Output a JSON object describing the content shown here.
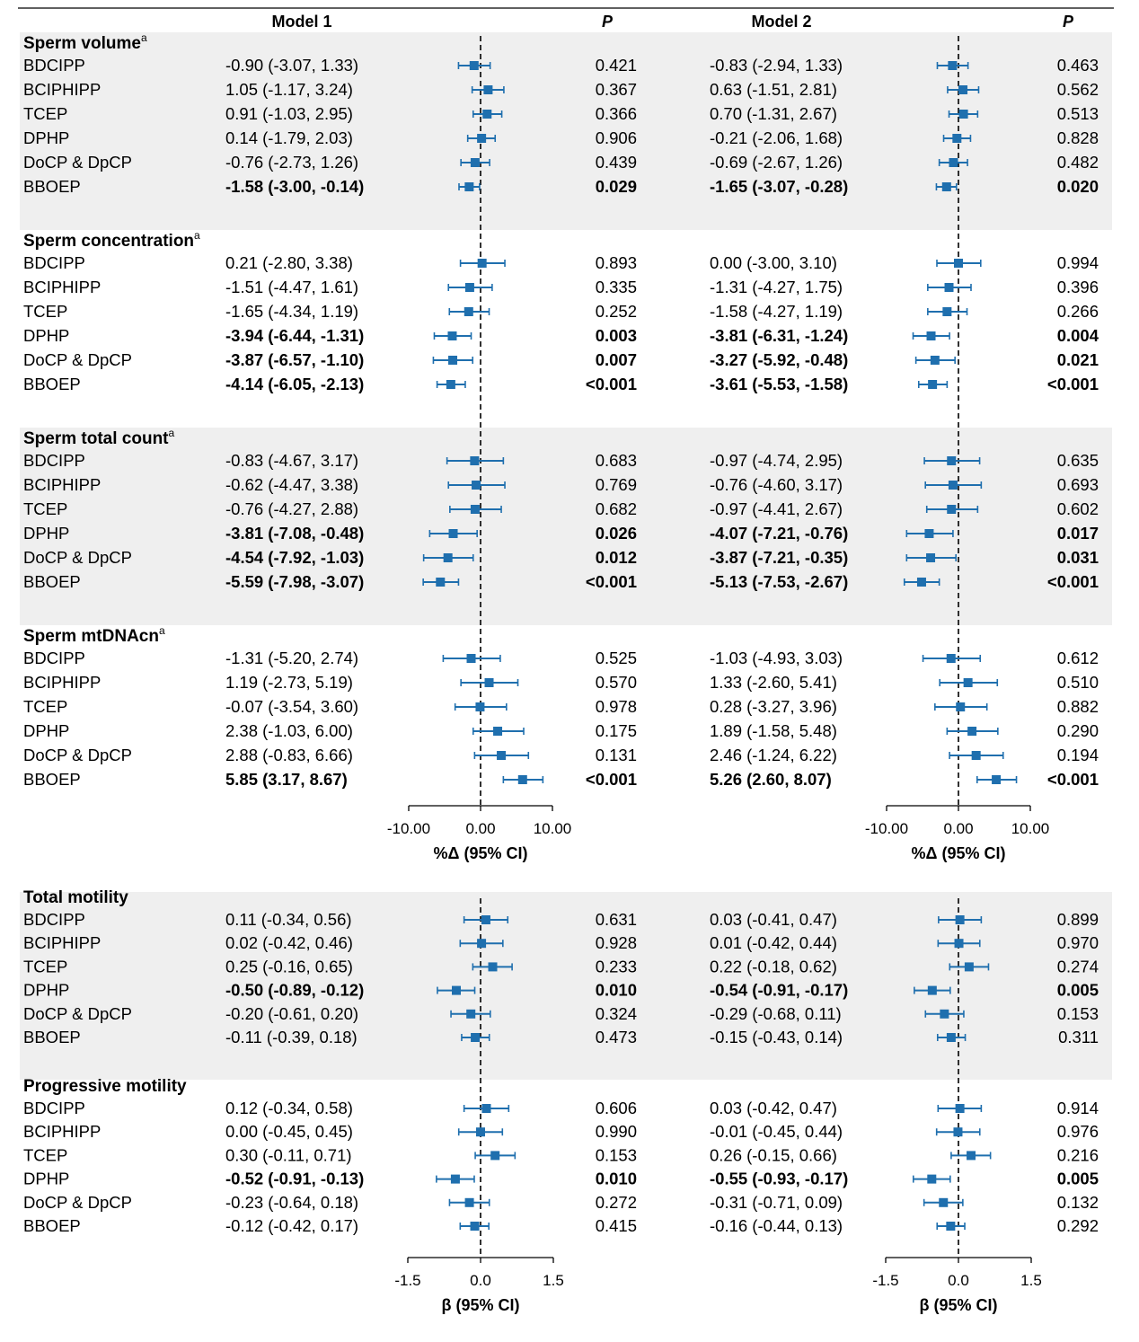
{
  "header": {
    "model1": "Model 1",
    "model2": "Model 2",
    "p_label": "P"
  },
  "colors": {
    "marker": "#1f6fae",
    "band": "#efefef",
    "text": "#000000"
  },
  "chart_data": {
    "type": "forest",
    "groups": [
      {
        "title": "Sperm volume",
        "superscript": "a",
        "shaded": true,
        "scale": "pct",
        "rows": [
          {
            "label": "BDCIPP",
            "bold": false,
            "m1": {
              "est": -0.9,
              "lo": -3.07,
              "hi": 1.33,
              "text": "-0.90 (-3.07, 1.33)",
              "p": "0.421"
            },
            "m2": {
              "est": -0.83,
              "lo": -2.94,
              "hi": 1.33,
              "text": "-0.83 (-2.94, 1.33)",
              "p": "0.463"
            }
          },
          {
            "label": "BCIPHIPP",
            "bold": false,
            "m1": {
              "est": 1.05,
              "lo": -1.17,
              "hi": 3.24,
              "text": "1.05 (-1.17, 3.24)",
              "p": "0.367"
            },
            "m2": {
              "est": 0.63,
              "lo": -1.51,
              "hi": 2.81,
              "text": "0.63 (-1.51, 2.81)",
              "p": "0.562"
            }
          },
          {
            "label": "TCEP",
            "bold": false,
            "m1": {
              "est": 0.91,
              "lo": -1.03,
              "hi": 2.95,
              "text": "0.91 (-1.03, 2.95)",
              "p": "0.366"
            },
            "m2": {
              "est": 0.7,
              "lo": -1.31,
              "hi": 2.67,
              "text": "0.70 (-1.31, 2.67)",
              "p": "0.513"
            }
          },
          {
            "label": "DPHP",
            "bold": false,
            "m1": {
              "est": 0.14,
              "lo": -1.79,
              "hi": 2.03,
              "text": "0.14 (-1.79, 2.03)",
              "p": "0.906"
            },
            "m2": {
              "est": -0.21,
              "lo": -2.06,
              "hi": 1.68,
              "text": "-0.21 (-2.06, 1.68)",
              "p": "0.828"
            }
          },
          {
            "label": "DoCP & DpCP",
            "bold": false,
            "m1": {
              "est": -0.76,
              "lo": -2.73,
              "hi": 1.26,
              "text": "-0.76 (-2.73, 1.26)",
              "p": "0.439"
            },
            "m2": {
              "est": -0.69,
              "lo": -2.67,
              "hi": 1.26,
              "text": "-0.69 (-2.67, 1.26)",
              "p": "0.482"
            }
          },
          {
            "label": "BBOEP",
            "bold": true,
            "m1": {
              "est": -1.58,
              "lo": -3.0,
              "hi": -0.14,
              "text": "-1.58 (-3.00, -0.14)",
              "p": "0.029"
            },
            "m2": {
              "est": -1.65,
              "lo": -3.07,
              "hi": -0.28,
              "text": "-1.65 (-3.07, -0.28)",
              "p": "0.020"
            }
          }
        ]
      },
      {
        "title": "Sperm concentration",
        "superscript": "a",
        "shaded": false,
        "scale": "pct",
        "rows": [
          {
            "label": "BDCIPP",
            "bold": false,
            "m1": {
              "est": 0.21,
              "lo": -2.8,
              "hi": 3.38,
              "text": "0.21 (-2.80, 3.38)",
              "p": "0.893"
            },
            "m2": {
              "est": 0.0,
              "lo": -3.0,
              "hi": 3.1,
              "text": "0.00 (-3.00, 3.10)",
              "p": "0.994"
            }
          },
          {
            "label": "BCIPHIPP",
            "bold": false,
            "m1": {
              "est": -1.51,
              "lo": -4.47,
              "hi": 1.61,
              "text": "-1.51 (-4.47, 1.61)",
              "p": "0.335"
            },
            "m2": {
              "est": -1.31,
              "lo": -4.27,
              "hi": 1.75,
              "text": "-1.31 (-4.27, 1.75)",
              "p": "0.396"
            }
          },
          {
            "label": "TCEP",
            "bold": false,
            "m1": {
              "est": -1.65,
              "lo": -4.34,
              "hi": 1.19,
              "text": "-1.65 (-4.34, 1.19)",
              "p": "0.252"
            },
            "m2": {
              "est": -1.58,
              "lo": -4.27,
              "hi": 1.19,
              "text": "-1.58 (-4.27, 1.19)",
              "p": "0.266"
            }
          },
          {
            "label": "DPHP",
            "bold": true,
            "m1": {
              "est": -3.94,
              "lo": -6.44,
              "hi": -1.31,
              "text": "-3.94 (-6.44, -1.31)",
              "p": "0.003"
            },
            "m2": {
              "est": -3.81,
              "lo": -6.31,
              "hi": -1.24,
              "text": "-3.81 (-6.31, -1.24)",
              "p": "0.004"
            }
          },
          {
            "label": "DoCP & DpCP",
            "bold": true,
            "m1": {
              "est": -3.87,
              "lo": -6.57,
              "hi": -1.1,
              "text": "-3.87 (-6.57, -1.10)",
              "p": "0.007"
            },
            "m2": {
              "est": -3.27,
              "lo": -5.92,
              "hi": -0.48,
              "text": "-3.27 (-5.92, -0.48)",
              "p": "0.021"
            }
          },
          {
            "label": "BBOEP",
            "bold": true,
            "m1": {
              "est": -4.14,
              "lo": -6.05,
              "hi": -2.13,
              "text": "-4.14 (-6.05, -2.13)",
              "p": "<0.001"
            },
            "m2": {
              "est": -3.61,
              "lo": -5.53,
              "hi": -1.58,
              "text": "-3.61 (-5.53, -1.58)",
              "p": "<0.001"
            }
          }
        ]
      },
      {
        "title": "Sperm total count",
        "superscript": "a",
        "shaded": true,
        "scale": "pct",
        "rows": [
          {
            "label": "BDCIPP",
            "bold": false,
            "m1": {
              "est": -0.83,
              "lo": -4.67,
              "hi": 3.17,
              "text": "-0.83 (-4.67, 3.17)",
              "p": "0.683"
            },
            "m2": {
              "est": -0.97,
              "lo": -4.74,
              "hi": 2.95,
              "text": "-0.97 (-4.74, 2.95)",
              "p": "0.635"
            }
          },
          {
            "label": "BCIPHIPP",
            "bold": false,
            "m1": {
              "est": -0.62,
              "lo": -4.47,
              "hi": 3.38,
              "text": "-0.62 (-4.47, 3.38)",
              "p": "0.769"
            },
            "m2": {
              "est": -0.76,
              "lo": -4.6,
              "hi": 3.17,
              "text": "-0.76 (-4.60, 3.17)",
              "p": "0.693"
            }
          },
          {
            "label": "TCEP",
            "bold": false,
            "m1": {
              "est": -0.76,
              "lo": -4.27,
              "hi": 2.88,
              "text": "-0.76 (-4.27, 2.88)",
              "p": "0.682"
            },
            "m2": {
              "est": -0.97,
              "lo": -4.41,
              "hi": 2.67,
              "text": "-0.97 (-4.41, 2.67)",
              "p": "0.602"
            }
          },
          {
            "label": "DPHP",
            "bold": true,
            "m1": {
              "est": -3.81,
              "lo": -7.08,
              "hi": -0.48,
              "text": "-3.81 (-7.08, -0.48)",
              "p": "0.026"
            },
            "m2": {
              "est": -4.07,
              "lo": -7.21,
              "hi": -0.76,
              "text": "-4.07 (-7.21, -0.76)",
              "p": "0.017"
            }
          },
          {
            "label": "DoCP & DpCP",
            "bold": true,
            "m1": {
              "est": -4.54,
              "lo": -7.92,
              "hi": -1.03,
              "text": "-4.54 (-7.92, -1.03)",
              "p": "0.012"
            },
            "m2": {
              "est": -3.87,
              "lo": -7.21,
              "hi": -0.35,
              "text": "-3.87 (-7.21, -0.35)",
              "p": "0.031"
            }
          },
          {
            "label": "BBOEP",
            "bold": true,
            "m1": {
              "est": -5.59,
              "lo": -7.98,
              "hi": -3.07,
              "text": "-5.59 (-7.98, -3.07)",
              "p": "<0.001"
            },
            "m2": {
              "est": -5.13,
              "lo": -7.53,
              "hi": -2.67,
              "text": "-5.13 (-7.53, -2.67)",
              "p": "<0.001"
            }
          }
        ]
      },
      {
        "title": "Sperm mtDNAcn",
        "superscript": "a",
        "shaded": false,
        "scale": "pct",
        "rows": [
          {
            "label": "BDCIPP",
            "bold": false,
            "m1": {
              "est": -1.31,
              "lo": -5.2,
              "hi": 2.74,
              "text": "-1.31 (-5.20, 2.74)",
              "p": "0.525"
            },
            "m2": {
              "est": -1.03,
              "lo": -4.93,
              "hi": 3.03,
              "text": "-1.03 (-4.93, 3.03)",
              "p": "0.612"
            }
          },
          {
            "label": "BCIPHIPP",
            "bold": false,
            "m1": {
              "est": 1.19,
              "lo": -2.73,
              "hi": 5.19,
              "text": "1.19 (-2.73, 5.19)",
              "p": "0.570"
            },
            "m2": {
              "est": 1.33,
              "lo": -2.6,
              "hi": 5.41,
              "text": "1.33 (-2.60, 5.41)",
              "p": "0.510"
            }
          },
          {
            "label": "TCEP",
            "bold": false,
            "m1": {
              "est": -0.07,
              "lo": -3.54,
              "hi": 3.6,
              "text": "-0.07 (-3.54, 3.60)",
              "p": "0.978"
            },
            "m2": {
              "est": 0.28,
              "lo": -3.27,
              "hi": 3.96,
              "text": "0.28 (-3.27, 3.96)",
              "p": "0.882"
            }
          },
          {
            "label": "DPHP",
            "bold": false,
            "m1": {
              "est": 2.38,
              "lo": -1.03,
              "hi": 6.0,
              "text": "2.38 (-1.03, 6.00)",
              "p": "0.175"
            },
            "m2": {
              "est": 1.89,
              "lo": -1.58,
              "hi": 5.48,
              "text": "1.89 (-1.58, 5.48)",
              "p": "0.290"
            }
          },
          {
            "label": "DoCP & DpCP",
            "bold": false,
            "m1": {
              "est": 2.88,
              "lo": -0.83,
              "hi": 6.66,
              "text": "2.88 (-0.83, 6.66)",
              "p": "0.131"
            },
            "m2": {
              "est": 2.46,
              "lo": -1.24,
              "hi": 6.22,
              "text": "2.46 (-1.24, 6.22)",
              "p": "0.194"
            }
          },
          {
            "label": "BBOEP",
            "bold": true,
            "m1": {
              "est": 5.85,
              "lo": 3.17,
              "hi": 8.67,
              "text": "5.85 (3.17, 8.67)",
              "p": "<0.001"
            },
            "m2": {
              "est": 5.26,
              "lo": 2.6,
              "hi": 8.07,
              "text": "5.26 (2.60, 8.07)",
              "p": "<0.001"
            }
          }
        ]
      },
      {
        "title": "Total motility",
        "superscript": "",
        "shaded": true,
        "scale": "beta",
        "rows": [
          {
            "label": "BDCIPP",
            "bold": false,
            "m1": {
              "est": 0.11,
              "lo": -0.34,
              "hi": 0.56,
              "text": "0.11 (-0.34, 0.56)",
              "p": "0.631"
            },
            "m2": {
              "est": 0.03,
              "lo": -0.41,
              "hi": 0.47,
              "text": "0.03 (-0.41, 0.47)",
              "p": "0.899"
            }
          },
          {
            "label": "BCIPHIPP",
            "bold": false,
            "m1": {
              "est": 0.02,
              "lo": -0.42,
              "hi": 0.46,
              "text": "0.02 (-0.42, 0.46)",
              "p": "0.928"
            },
            "m2": {
              "est": 0.01,
              "lo": -0.42,
              "hi": 0.44,
              "text": "0.01 (-0.42, 0.44)",
              "p": "0.970"
            }
          },
          {
            "label": "TCEP",
            "bold": false,
            "m1": {
              "est": 0.25,
              "lo": -0.16,
              "hi": 0.65,
              "text": "0.25 (-0.16, 0.65)",
              "p": "0.233"
            },
            "m2": {
              "est": 0.22,
              "lo": -0.18,
              "hi": 0.62,
              "text": "0.22 (-0.18, 0.62)",
              "p": "0.274"
            }
          },
          {
            "label": "DPHP",
            "bold": true,
            "m1": {
              "est": -0.5,
              "lo": -0.89,
              "hi": -0.12,
              "text": "-0.50 (-0.89, -0.12)",
              "p": "0.010"
            },
            "m2": {
              "est": -0.54,
              "lo": -0.91,
              "hi": -0.17,
              "text": "-0.54 (-0.91, -0.17)",
              "p": "0.005"
            }
          },
          {
            "label": "DoCP & DpCP",
            "bold": false,
            "m1": {
              "est": -0.2,
              "lo": -0.61,
              "hi": 0.2,
              "text": "-0.20 (-0.61, 0.20)",
              "p": "0.324"
            },
            "m2": {
              "est": -0.29,
              "lo": -0.68,
              "hi": 0.11,
              "text": "-0.29 (-0.68, 0.11)",
              "p": "0.153"
            }
          },
          {
            "label": "BBOEP",
            "bold": false,
            "m1": {
              "est": -0.11,
              "lo": -0.39,
              "hi": 0.18,
              "text": "-0.11 (-0.39, 0.18)",
              "p": "0.473"
            },
            "m2": {
              "est": -0.15,
              "lo": -0.43,
              "hi": 0.14,
              "text": "-0.15 (-0.43, 0.14)",
              "p": "0.311"
            }
          }
        ]
      },
      {
        "title": "Progressive motility",
        "superscript": "",
        "shaded": false,
        "scale": "beta",
        "rows": [
          {
            "label": "BDCIPP",
            "bold": false,
            "m1": {
              "est": 0.12,
              "lo": -0.34,
              "hi": 0.58,
              "text": "0.12 (-0.34, 0.58)",
              "p": "0.606"
            },
            "m2": {
              "est": 0.03,
              "lo": -0.42,
              "hi": 0.47,
              "text": "0.03 (-0.42, 0.47)",
              "p": "0.914"
            }
          },
          {
            "label": "BCIPHIPP",
            "bold": false,
            "m1": {
              "est": 0.0,
              "lo": -0.45,
              "hi": 0.45,
              "text": "0.00 (-0.45, 0.45)",
              "p": "0.990"
            },
            "m2": {
              "est": -0.01,
              "lo": -0.45,
              "hi": 0.44,
              "text": "-0.01 (-0.45, 0.44)",
              "p": "0.976"
            }
          },
          {
            "label": "TCEP",
            "bold": false,
            "m1": {
              "est": 0.3,
              "lo": -0.11,
              "hi": 0.71,
              "text": "0.30 (-0.11, 0.71)",
              "p": "0.153"
            },
            "m2": {
              "est": 0.26,
              "lo": -0.15,
              "hi": 0.66,
              "text": "0.26 (-0.15, 0.66)",
              "p": "0.216"
            }
          },
          {
            "label": "DPHP",
            "bold": true,
            "m1": {
              "est": -0.52,
              "lo": -0.91,
              "hi": -0.13,
              "text": "-0.52 (-0.91, -0.13)",
              "p": "0.010"
            },
            "m2": {
              "est": -0.55,
              "lo": -0.93,
              "hi": -0.17,
              "text": "-0.55 (-0.93, -0.17)",
              "p": "0.005"
            }
          },
          {
            "label": "DoCP & DpCP",
            "bold": false,
            "m1": {
              "est": -0.23,
              "lo": -0.64,
              "hi": 0.18,
              "text": "-0.23 (-0.64, 0.18)",
              "p": "0.272"
            },
            "m2": {
              "est": -0.31,
              "lo": -0.71,
              "hi": 0.09,
              "text": "-0.31 (-0.71, 0.09)",
              "p": "0.132"
            }
          },
          {
            "label": "BBOEP",
            "bold": false,
            "m1": {
              "est": -0.12,
              "lo": -0.42,
              "hi": 0.17,
              "text": "-0.12 (-0.42, 0.17)",
              "p": "0.415"
            },
            "m2": {
              "est": -0.16,
              "lo": -0.44,
              "hi": 0.13,
              "text": "-0.16 (-0.44, 0.13)",
              "p": "0.292"
            }
          }
        ]
      }
    ],
    "axes": {
      "pct": {
        "xlim": [
          -10,
          10
        ],
        "ticks": [
          "-10.00",
          "0.00",
          "10.00"
        ],
        "tick_values": [
          -10,
          0,
          10
        ],
        "label": "%Δ  (95% CI)"
      },
      "beta": {
        "xlim": [
          -1.5,
          1.5
        ],
        "ticks": [
          "-1.5",
          "0.0",
          "1.5"
        ],
        "tick_values": [
          -1.5,
          0,
          1.5
        ],
        "label": "β (95% CI)"
      }
    }
  }
}
